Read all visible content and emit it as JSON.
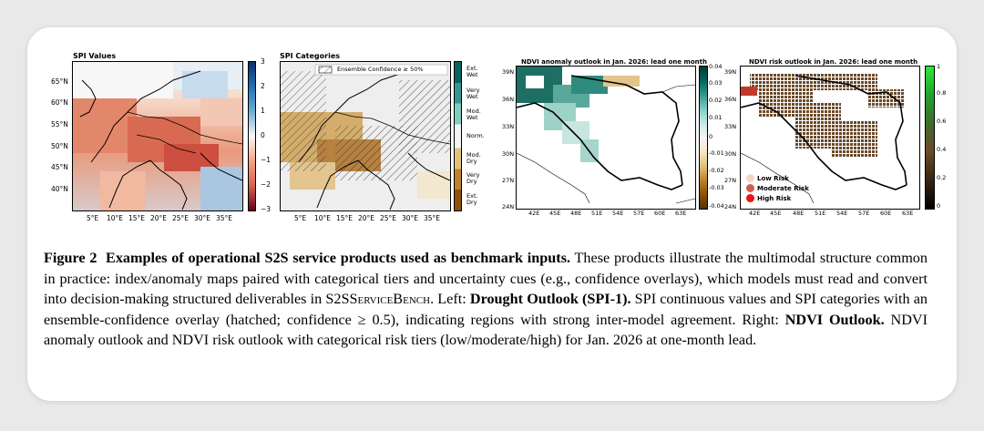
{
  "figure": {
    "panels": {
      "spi_values": {
        "title": "SPI Values",
        "lat_ticks": [
          "65°N",
          "60°N",
          "55°N",
          "50°N",
          "45°N",
          "40°N"
        ],
        "lon_ticks": [
          "5°E",
          "10°E",
          "15°E",
          "20°E",
          "25°E",
          "30°E",
          "35°E"
        ],
        "colorbar_ticks": [
          "3",
          "2",
          "1",
          "0",
          "−1",
          "−2",
          "−3"
        ]
      },
      "spi_categories": {
        "title": "SPI Categories",
        "legend_label": "Ensemble Confidence ≥ 50%",
        "lon_ticks": [
          "5°E",
          "10°E",
          "15°E",
          "20°E",
          "25°E",
          "30°E",
          "35°E"
        ],
        "categories": [
          "Ext. Wet",
          "Very Wet",
          "Mod. Wet",
          "Norm.",
          "Mod. Dry",
          "Very Dry",
          "Ext. Dry"
        ]
      },
      "ndvi_anomaly": {
        "title": "NDVI anomaly outlook in Jan. 2026: lead one month",
        "lat_ticks": [
          "39N",
          "36N",
          "33N",
          "30N",
          "27N",
          "24N"
        ],
        "lon_ticks": [
          "42E",
          "45E",
          "48E",
          "51E",
          "54E",
          "57E",
          "60E",
          "63E"
        ],
        "colorbar_ticks": [
          "0.04",
          "0.03",
          "0.02",
          "0.01",
          "0",
          "-0.01",
          "-0.02",
          "-0.03",
          "-0.04"
        ]
      },
      "ndvi_risk": {
        "title": "NDVI risk outlook in Jan. 2026: lead one month",
        "lat_ticks": [
          "39N",
          "36N",
          "33N",
          "30N",
          "27N",
          "24N"
        ],
        "lon_ticks": [
          "42E",
          "45E",
          "48E",
          "51E",
          "54E",
          "57E",
          "60E",
          "63E"
        ],
        "colorbar_ticks": [
          "1",
          "0.8",
          "0.6",
          "0.4",
          "0.2",
          "0"
        ],
        "legend": [
          "Low Risk",
          "Moderate Risk",
          "High Risk"
        ]
      }
    },
    "caption": {
      "label": "Figure 2",
      "title": "Examples of operational S2S service products used as benchmark inputs.",
      "part1": "These products illustrate the multimodal structure common in practice: index/anomaly maps paired with categorical tiers and uncertainty cues (e.g., confidence overlays), which models must read and convert into decision-making structured deliverables in S2S",
      "bench_sc": "ServiceBench",
      "part2": ". Left: ",
      "left_bold": "Drought Outlook (SPI-1).",
      "part3": " SPI continuous values and SPI categories with an ensemble-confidence overlay (hatched; confidence ≥ 0.5), indicating regions with strong inter-model agreement. Right: ",
      "right_bold": "NDVI Outlook.",
      "part4": " NDVI anomaly outlook and NDVI risk outlook with categorical risk tiers (low/moderate/high) for Jan. 2026 at one-month lead."
    }
  }
}
